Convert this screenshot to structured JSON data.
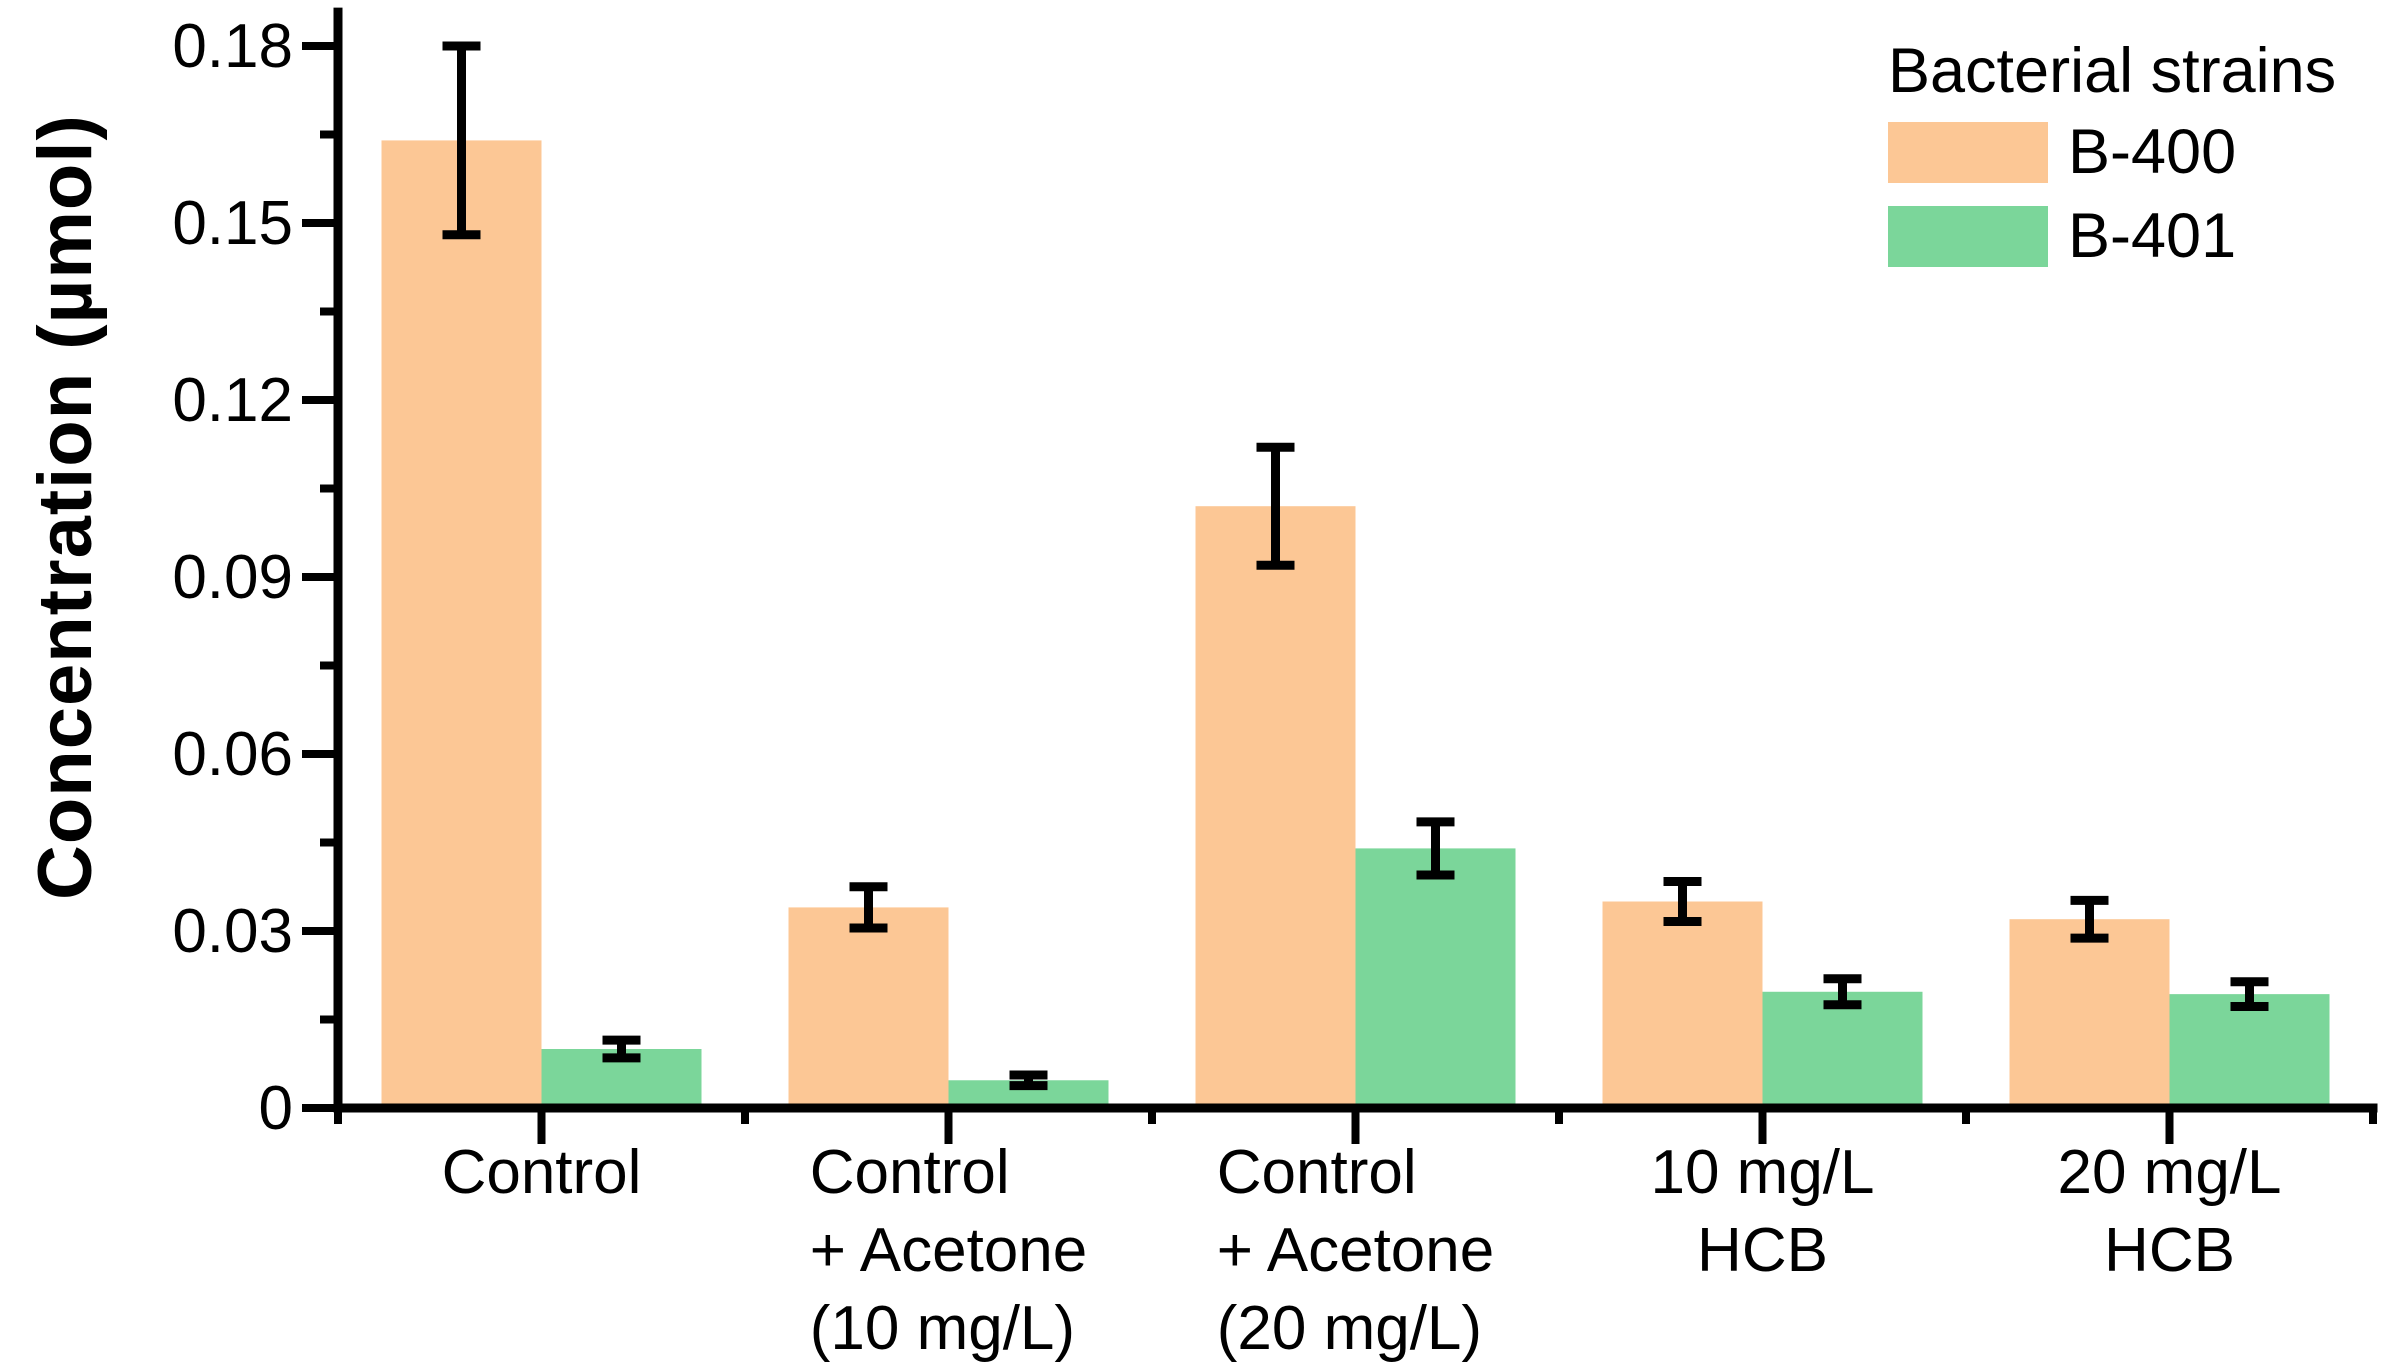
{
  "figure": {
    "background": "#ffffff",
    "text_color": "#000000",
    "axis_color": "#000000"
  },
  "y_axis": {
    "title": "Concentration (µmol)"
  },
  "legend": {
    "title": "Bacterial strains",
    "entries": [
      {
        "label": "B-400",
        "color": "#FCC795"
      },
      {
        "label": "B-401",
        "color": "#7BD69A"
      }
    ]
  },
  "chart_data": {
    "type": "bar",
    "title": "",
    "xlabel": "",
    "ylabel": "Concentration (µmol)",
    "categories": [
      "Control",
      "Control + Acetone (10 mg/L)",
      "Control + Acetone (20 mg/L)",
      "10 mg/L HCB",
      "20 mg/L HCB"
    ],
    "category_label_lines": [
      [
        "Control"
      ],
      [
        "Control",
        "+ Acetone",
        "(10 mg/L)"
      ],
      [
        "Control",
        "+ Acetone",
        "(20 mg/L)"
      ],
      [
        "10 mg/L",
        "HCB"
      ],
      [
        "20 mg/L",
        "HCB"
      ]
    ],
    "series": [
      {
        "name": "B-400",
        "color": "#FCC795",
        "values": [
          0.164,
          0.034,
          0.102,
          0.035,
          0.032
        ],
        "errors": [
          0.016,
          0.0035,
          0.01,
          0.0034,
          0.0032
        ]
      },
      {
        "name": "B-401",
        "color": "#7BD69A",
        "values": [
          0.01,
          0.0047,
          0.044,
          0.0197,
          0.0193
        ],
        "errors": [
          0.0015,
          0.0009,
          0.0045,
          0.0022,
          0.0021
        ]
      }
    ],
    "ylim": [
      0,
      0.1865
    ],
    "yticks_major": [
      0,
      0.03,
      0.06,
      0.09,
      0.12,
      0.15,
      0.18
    ],
    "ytick_labels": [
      "0",
      "0.03",
      "0.06",
      "0.09",
      "0.12",
      "0.15",
      "0.18"
    ],
    "yticks_minor": [
      0.015,
      0.045,
      0.075,
      0.105,
      0.135,
      0.165
    ],
    "grid": false,
    "error_bars": true,
    "error_bar_color": "#000000",
    "legend_position": "top-right",
    "legend_title": "Bacterial strains"
  }
}
